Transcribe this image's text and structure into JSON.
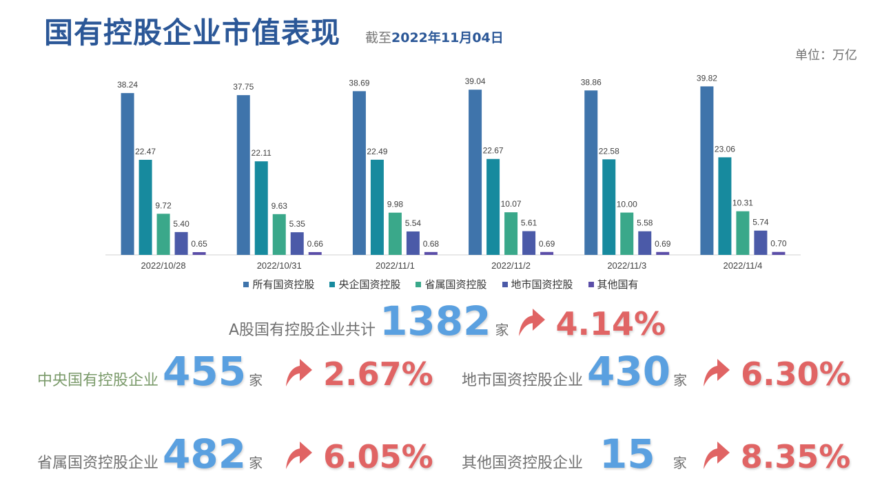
{
  "header": {
    "title": "国有控股企业市值表现",
    "asof_prefix": "截至",
    "asof_date": "2022年11月04日",
    "unit": "单位：万亿"
  },
  "colors": {
    "series": [
      "#3f74ab",
      "#178a9e",
      "#3aa88a",
      "#4b5aa8",
      "#5b4ea8"
    ],
    "count": "#5aa0e0",
    "pct": "#e06464"
  },
  "chart_data": {
    "type": "bar",
    "categories": [
      "2022/10/28",
      "2022/10/31",
      "2022/11/1",
      "2022/11/2",
      "2022/11/3",
      "2022/11/4"
    ],
    "series": [
      {
        "name": "所有国资控股",
        "values": [
          38.24,
          37.75,
          38.69,
          39.04,
          38.86,
          39.82
        ]
      },
      {
        "name": "央企国资控股",
        "values": [
          22.47,
          22.11,
          22.49,
          22.67,
          22.58,
          23.06
        ]
      },
      {
        "name": "省属国资控股",
        "values": [
          9.72,
          9.63,
          9.98,
          10.07,
          10.0,
          10.31
        ]
      },
      {
        "name": "地市国资控股",
        "values": [
          5.4,
          5.35,
          5.54,
          5.61,
          5.58,
          5.74
        ]
      },
      {
        "name": "其他国有",
        "values": [
          0.65,
          0.66,
          0.68,
          0.69,
          0.69,
          0.7
        ]
      }
    ],
    "ylim": [
      0,
      42
    ],
    "legend": "bottom",
    "grid": false
  },
  "stats": {
    "total": {
      "label": "A股国有控股企业共计",
      "count": "1382",
      "unit": "家",
      "pct": "4.14%"
    },
    "central": {
      "label": "中央国有控股企业",
      "count": "455",
      "unit": "家",
      "pct": "2.67%"
    },
    "municipal": {
      "label": "地市国资控股企业",
      "count": "430",
      "unit": "家",
      "pct": "6.30%"
    },
    "provincial": {
      "label": "省属国资控股企业",
      "count": "482",
      "unit": "家",
      "pct": "6.05%"
    },
    "other": {
      "label": "其他国资控股企业",
      "count": "15",
      "unit": "家",
      "pct": "8.35%"
    }
  }
}
